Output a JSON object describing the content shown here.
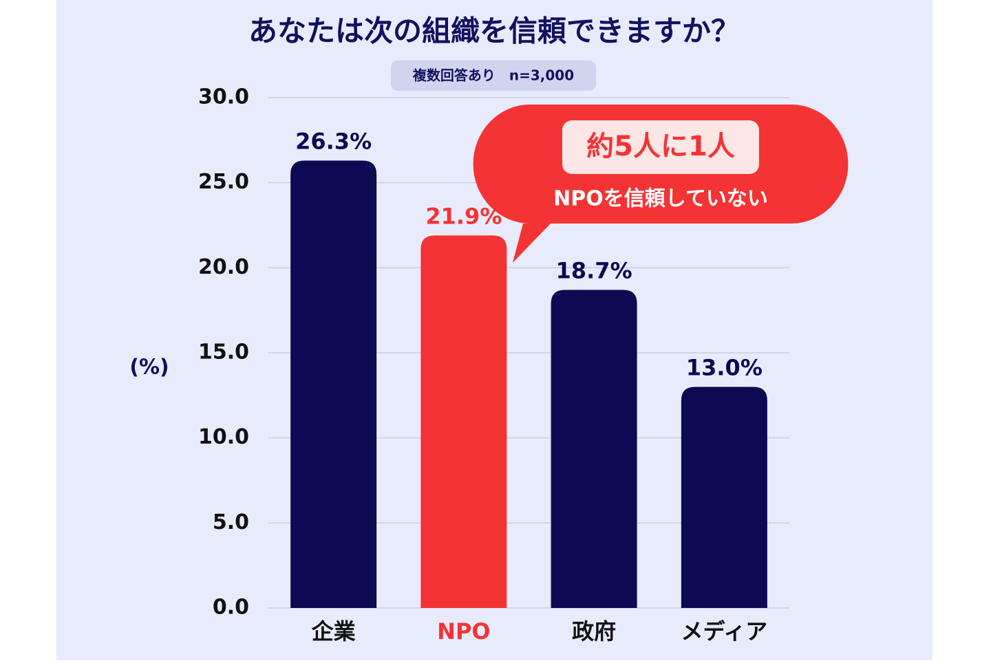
{
  "chart_data": {
    "type": "bar",
    "title": "あなたは次の組織を信頼できますか？",
    "subtitle": "複数回答あり　n=3,000",
    "y_label": "(%)",
    "categories": [
      "企業",
      "NPO",
      "政府",
      "メディア"
    ],
    "values": [
      26.3,
      21.9,
      18.7,
      13.0
    ],
    "value_labels": [
      "26.3%",
      "21.9%",
      "18.7%",
      "13.0%"
    ],
    "colors": [
      "#0b0a52",
      "#f43334",
      "#0b0a52",
      "#0b0a52"
    ],
    "ylim": [
      0,
      30
    ],
    "yticks": [
      {
        "value": 0,
        "label": "0.0"
      },
      {
        "value": 5,
        "label": "5.0"
      },
      {
        "value": 10,
        "label": "10.0"
      },
      {
        "value": 15,
        "label": "15.0"
      },
      {
        "value": 20,
        "label": "20.0"
      },
      {
        "value": 25,
        "label": "25.0"
      },
      {
        "value": 30,
        "label": "30.0"
      }
    ],
    "grid": true,
    "annotation": {
      "highlight": "約5人に1人",
      "text": "NPOを信頼していない"
    }
  }
}
